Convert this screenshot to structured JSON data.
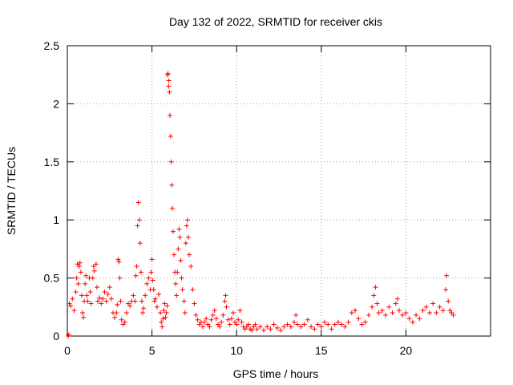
{
  "chart_data": {
    "type": "scatter",
    "title": "Day 132 of 2022, SRMTID for receiver ckis",
    "xlabel": "GPS time / hours",
    "ylabel": "SRMTID / TECUs",
    "xlim": [
      0,
      25
    ],
    "ylim": [
      0,
      2.5
    ],
    "xticks": [
      0,
      5,
      10,
      15,
      20
    ],
    "yticks": [
      0,
      0.5,
      1,
      1.5,
      2,
      2.5
    ],
    "xtick_labels": [
      "0",
      "5",
      "10",
      "15",
      "20"
    ],
    "ytick_labels": [
      "0",
      "0.5",
      "1",
      "1.5",
      "2",
      "2.5"
    ],
    "grid": true,
    "marker": "+",
    "color": "#ff0000",
    "series": [
      {
        "name": "SRMTID",
        "points": [
          [
            0.05,
            0.0
          ],
          [
            0.08,
            0.01
          ],
          [
            0.12,
            0.28
          ],
          [
            0.2,
            0.26
          ],
          [
            0.3,
            0.32
          ],
          [
            0.4,
            0.22
          ],
          [
            0.5,
            0.38
          ],
          [
            0.55,
            0.5
          ],
          [
            0.6,
            0.62
          ],
          [
            0.65,
            0.45
          ],
          [
            0.7,
            0.6
          ],
          [
            0.75,
            0.63
          ],
          [
            0.8,
            0.55
          ],
          [
            0.85,
            0.35
          ],
          [
            0.9,
            0.2
          ],
          [
            0.95,
            0.16
          ],
          [
            1.0,
            0.3
          ],
          [
            1.05,
            0.45
          ],
          [
            1.1,
            0.52
          ],
          [
            1.15,
            0.35
          ],
          [
            1.2,
            0.3
          ],
          [
            1.3,
            0.5
          ],
          [
            1.35,
            0.38
          ],
          [
            1.4,
            0.28
          ],
          [
            1.5,
            0.5
          ],
          [
            1.55,
            0.6
          ],
          [
            1.6,
            0.56
          ],
          [
            1.7,
            0.62
          ],
          [
            1.75,
            0.42
          ],
          [
            1.8,
            0.3
          ],
          [
            1.9,
            0.33
          ],
          [
            2.0,
            0.28
          ],
          [
            2.1,
            0.32
          ],
          [
            2.2,
            0.38
          ],
          [
            2.3,
            0.3
          ],
          [
            2.4,
            0.36
          ],
          [
            2.5,
            0.42
          ],
          [
            2.6,
            0.32
          ],
          [
            2.7,
            0.2
          ],
          [
            2.8,
            0.16
          ],
          [
            2.9,
            0.2
          ],
          [
            2.95,
            0.27
          ],
          [
            3.0,
            0.66
          ],
          [
            3.05,
            0.64
          ],
          [
            3.1,
            0.5
          ],
          [
            3.15,
            0.3
          ],
          [
            3.2,
            0.14
          ],
          [
            3.3,
            0.1
          ],
          [
            3.4,
            0.12
          ],
          [
            3.5,
            0.2
          ],
          [
            3.6,
            0.28
          ],
          [
            3.7,
            0.26
          ],
          [
            3.8,
            0.3
          ],
          [
            3.9,
            0.35
          ],
          [
            4.0,
            0.3
          ],
          [
            4.05,
            0.52
          ],
          [
            4.1,
            0.6
          ],
          [
            4.15,
            0.95
          ],
          [
            4.2,
            1.15
          ],
          [
            4.25,
            1.0
          ],
          [
            4.3,
            0.8
          ],
          [
            4.35,
            0.55
          ],
          [
            4.4,
            0.3
          ],
          [
            4.45,
            0.2
          ],
          [
            4.5,
            0.24
          ],
          [
            4.6,
            0.35
          ],
          [
            4.7,
            0.45
          ],
          [
            4.8,
            0.5
          ],
          [
            4.9,
            0.4
          ],
          [
            4.95,
            0.55
          ],
          [
            5.0,
            0.66
          ],
          [
            5.05,
            0.48
          ],
          [
            5.1,
            0.4
          ],
          [
            5.15,
            0.3
          ],
          [
            5.2,
            0.32
          ],
          [
            5.3,
            0.25
          ],
          [
            5.4,
            0.36
          ],
          [
            5.5,
            0.2
          ],
          [
            5.55,
            0.12
          ],
          [
            5.6,
            0.08
          ],
          [
            5.65,
            0.15
          ],
          [
            5.7,
            0.22
          ],
          [
            5.75,
            0.28
          ],
          [
            5.8,
            0.16
          ],
          [
            5.85,
            0.2
          ],
          [
            5.9,
            0.26
          ],
          [
            5.92,
            2.25
          ],
          [
            5.95,
            2.26
          ],
          [
            5.98,
            2.15
          ],
          [
            6.0,
            2.2
          ],
          [
            6.03,
            2.1
          ],
          [
            6.06,
            1.9
          ],
          [
            6.1,
            1.72
          ],
          [
            6.13,
            1.5
          ],
          [
            6.17,
            1.3
          ],
          [
            6.2,
            1.1
          ],
          [
            6.25,
            0.9
          ],
          [
            6.3,
            0.7
          ],
          [
            6.35,
            0.55
          ],
          [
            6.4,
            0.45
          ],
          [
            6.45,
            0.35
          ],
          [
            6.5,
            0.55
          ],
          [
            6.55,
            0.75
          ],
          [
            6.6,
            0.92
          ],
          [
            6.65,
            0.85
          ],
          [
            6.7,
            0.65
          ],
          [
            6.75,
            0.5
          ],
          [
            6.8,
            0.4
          ],
          [
            6.9,
            0.3
          ],
          [
            6.95,
            0.2
          ],
          [
            7.0,
            0.8
          ],
          [
            7.05,
            0.95
          ],
          [
            7.1,
            1.0
          ],
          [
            7.15,
            0.85
          ],
          [
            7.2,
            0.7
          ],
          [
            7.3,
            0.6
          ],
          [
            7.4,
            0.4
          ],
          [
            7.5,
            0.28
          ],
          [
            7.6,
            0.18
          ],
          [
            7.7,
            0.14
          ],
          [
            7.8,
            0.1
          ],
          [
            7.9,
            0.12
          ],
          [
            8.0,
            0.08
          ],
          [
            8.1,
            0.12
          ],
          [
            8.2,
            0.15
          ],
          [
            8.3,
            0.1
          ],
          [
            8.4,
            0.08
          ],
          [
            8.5,
            0.14
          ],
          [
            8.6,
            0.18
          ],
          [
            8.7,
            0.22
          ],
          [
            8.8,
            0.15
          ],
          [
            8.9,
            0.1
          ],
          [
            9.0,
            0.08
          ],
          [
            9.1,
            0.12
          ],
          [
            9.2,
            0.18
          ],
          [
            9.3,
            0.3
          ],
          [
            9.35,
            0.35
          ],
          [
            9.4,
            0.25
          ],
          [
            9.5,
            0.14
          ],
          [
            9.6,
            0.1
          ],
          [
            9.7,
            0.15
          ],
          [
            9.8,
            0.2
          ],
          [
            9.9,
            0.12
          ],
          [
            10.0,
            0.1
          ],
          [
            10.1,
            0.14
          ],
          [
            10.2,
            0.22
          ],
          [
            10.3,
            0.12
          ],
          [
            10.4,
            0.08
          ],
          [
            10.5,
            0.06
          ],
          [
            10.6,
            0.08
          ],
          [
            10.7,
            0.1
          ],
          [
            10.8,
            0.06
          ],
          [
            10.9,
            0.05
          ],
          [
            11.0,
            0.08
          ],
          [
            11.1,
            0.1
          ],
          [
            11.2,
            0.06
          ],
          [
            11.4,
            0.08
          ],
          [
            11.6,
            0.05
          ],
          [
            11.8,
            0.08
          ],
          [
            12.0,
            0.06
          ],
          [
            12.2,
            0.1
          ],
          [
            12.4,
            0.07
          ],
          [
            12.6,
            0.05
          ],
          [
            12.8,
            0.08
          ],
          [
            13.0,
            0.1
          ],
          [
            13.2,
            0.08
          ],
          [
            13.4,
            0.12
          ],
          [
            13.5,
            0.18
          ],
          [
            13.6,
            0.1
          ],
          [
            13.8,
            0.08
          ],
          [
            14.0,
            0.1
          ],
          [
            14.2,
            0.14
          ],
          [
            14.4,
            0.08
          ],
          [
            14.6,
            0.06
          ],
          [
            14.8,
            0.1
          ],
          [
            15.0,
            0.08
          ],
          [
            15.2,
            0.12
          ],
          [
            15.4,
            0.1
          ],
          [
            15.6,
            0.06
          ],
          [
            15.8,
            0.1
          ],
          [
            16.0,
            0.12
          ],
          [
            16.2,
            0.1
          ],
          [
            16.4,
            0.08
          ],
          [
            16.6,
            0.12
          ],
          [
            16.8,
            0.2
          ],
          [
            17.0,
            0.22
          ],
          [
            17.2,
            0.15
          ],
          [
            17.4,
            0.1
          ],
          [
            17.6,
            0.12
          ],
          [
            17.8,
            0.18
          ],
          [
            18.0,
            0.25
          ],
          [
            18.1,
            0.35
          ],
          [
            18.2,
            0.42
          ],
          [
            18.3,
            0.28
          ],
          [
            18.4,
            0.2
          ],
          [
            18.6,
            0.22
          ],
          [
            18.8,
            0.18
          ],
          [
            19.0,
            0.25
          ],
          [
            19.2,
            0.2
          ],
          [
            19.4,
            0.28
          ],
          [
            19.5,
            0.32
          ],
          [
            19.6,
            0.22
          ],
          [
            19.8,
            0.18
          ],
          [
            20.0,
            0.2
          ],
          [
            20.2,
            0.15
          ],
          [
            20.4,
            0.12
          ],
          [
            20.6,
            0.18
          ],
          [
            20.8,
            0.15
          ],
          [
            21.0,
            0.22
          ],
          [
            21.2,
            0.25
          ],
          [
            21.4,
            0.2
          ],
          [
            21.6,
            0.28
          ],
          [
            21.8,
            0.2
          ],
          [
            22.0,
            0.25
          ],
          [
            22.2,
            0.22
          ],
          [
            22.35,
            0.4
          ],
          [
            22.4,
            0.52
          ],
          [
            22.5,
            0.3
          ],
          [
            22.6,
            0.22
          ],
          [
            22.7,
            0.2
          ],
          [
            22.8,
            0.18
          ]
        ]
      }
    ]
  }
}
